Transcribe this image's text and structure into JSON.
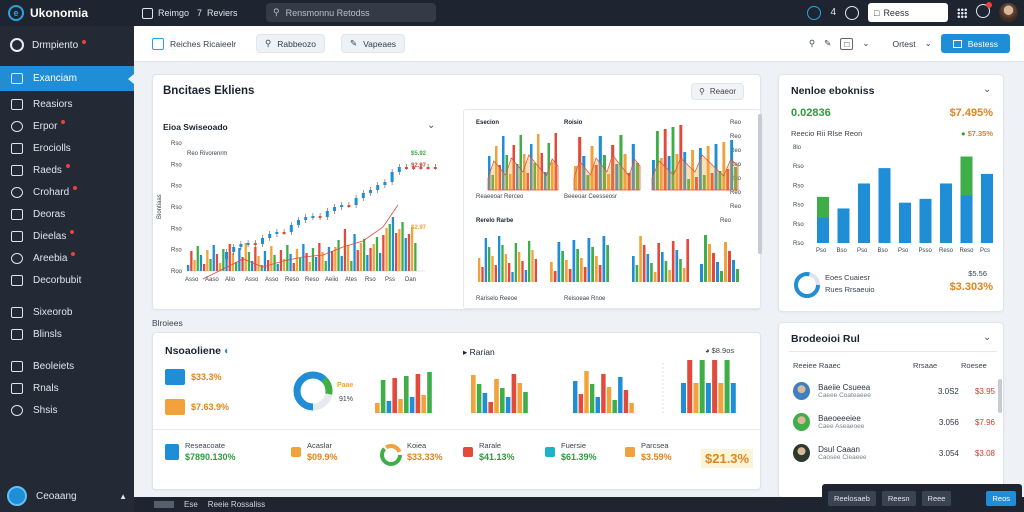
{
  "topbar": {
    "app_name": "Ukonomia",
    "item1": "Reimgo",
    "item2_num": "7",
    "item2": "Reviers",
    "search_placeholder": "Rensmonnu Retodss",
    "num": "4",
    "field": "Reess"
  },
  "sidebar": {
    "header": "Drmpiento",
    "items": [
      {
        "label": "Exanciam",
        "active": true,
        "icon": "chart-icon"
      },
      {
        "label": "Reasiors",
        "icon": "list-icon"
      },
      {
        "label": "Erpor",
        "dot": true,
        "icon": "doc-icon"
      },
      {
        "label": "Erociolls",
        "icon": "tag-icon"
      },
      {
        "label": "Raeds",
        "dot": true,
        "icon": "box-icon"
      },
      {
        "label": "Crohard",
        "dot": true,
        "icon": "cart-icon"
      },
      {
        "label": "Deoras",
        "icon": "user-icon"
      },
      {
        "label": "Dieelas",
        "dot": true,
        "icon": "cog-icon"
      },
      {
        "label": "Areebia",
        "dot": true,
        "icon": "mail-icon"
      },
      {
        "label": "Decorbubit",
        "icon": "folder-icon"
      }
    ],
    "items2": [
      {
        "label": "Sixeorob",
        "icon": "copy-icon"
      },
      {
        "label": "Blinsls",
        "icon": "grid-icon"
      }
    ],
    "items3": [
      {
        "label": "Beoleiets",
        "icon": "bag-icon"
      },
      {
        "label": "Rnals",
        "icon": "settings-icon"
      },
      {
        "label": "Shsis",
        "icon": "menu-icon"
      }
    ],
    "user": "Ceoaang"
  },
  "subbar": {
    "chip1": "Reiches Ricaieelr",
    "chip2": "Rabbeozo",
    "chip3": "Vapeaes",
    "ortest": "Ortest",
    "button": "Bestess"
  },
  "main": {
    "title": "Bncitaes Ekliens",
    "pill": "Reaeor",
    "chart1": {
      "title": "Eioa Swiseoado",
      "legend": "Reo Rivorenrm",
      "stat1": "$5.92",
      "stat2": "$5.92",
      "stat3": "$2.97",
      "stat4": "$2.97",
      "yticks": [
        "Rso",
        "Rso",
        "Rso",
        "Rso",
        "Rso",
        "Rso",
        "Roo"
      ],
      "xticks": [
        "Asso",
        "Aaso",
        "Alio",
        "Asso",
        "Asso",
        "Reso",
        "Reso",
        "Aeiio",
        "Ates",
        "Rso",
        "Pss",
        "Dan"
      ],
      "ylabel": "Biontiaas"
    },
    "chart2": {
      "title": "Esecion",
      "title2": "Roisio",
      "foot1": "Reaeeoar Rerceo",
      "foot2": "Beeeoar Ceesseosr",
      "title3": "Rerelo Rarbe",
      "foot3": "Rariselo Reeoe",
      "foot4": "Reisoeae Rnoe",
      "ticks": [
        "Reo",
        "Reo",
        "Reo",
        "Reo",
        "Reo",
        "Reo",
        "Reo"
      ]
    }
  },
  "section2": {
    "label": "Blroiees",
    "title": "Nsoaoliene",
    "subtitle": "Rarian",
    "top_right": "$8.9os",
    "kpi1_val": "$33.3%",
    "kpi2_val": "$7.63.9%",
    "donut_big1": "Paae",
    "donut_big2": "91%",
    "bottom": [
      {
        "lbl": "Reseacoate",
        "val": "$7890.130%"
      },
      {
        "lbl": "Acaslar",
        "val": "$09.9%"
      },
      {
        "lbl": "Koiea",
        "val": "$33.33%"
      },
      {
        "lbl": "Rarale",
        "val": "$41.13%"
      },
      {
        "lbl": "Fuersie",
        "val": "$61.39%"
      },
      {
        "lbl": "Parcsea",
        "val": "$3.59%"
      },
      {
        "lbl": "",
        "val": "$21.3%"
      }
    ]
  },
  "right1": {
    "title": "Nenloe ebokniss",
    "big_left": "0.02836",
    "big_right": "$7.495%",
    "sub": "Reecio Rii Rlse Reon",
    "sub_right": "$7.35%",
    "yticks": [
      "8lo",
      "Rso",
      "Rso",
      "Rso",
      "Rso",
      "Rso"
    ],
    "xticks": [
      "Pso",
      "Bso",
      "Pso",
      "Bso",
      "Pso",
      "Psso",
      "Reso",
      "Reso",
      "Pcs"
    ],
    "donut_lbl1": "Eoes Cuaiesr",
    "donut_lbl2": "Rues Rrsaeuio",
    "donut_val": "$3.303%",
    "donut_small": "$5.56"
  },
  "right2": {
    "title": "Brodeoioi Rul",
    "col1": "Reeiee Raaec",
    "col2": "Rrsaae",
    "col3": "Roesee",
    "rows": [
      {
        "name": "Baeiie Csueea",
        "sub": "Caeee Coateaeee",
        "amt": "3.0S2",
        "pct": "$3.95"
      },
      {
        "name": "Baeoeeeiee",
        "sub": "Caee Aseaeoee",
        "amt": "3.056",
        "pct": "$7.96"
      },
      {
        "name": "Dsul Caaan",
        "sub": "Caosee Cieaeee",
        "amt": "3.054",
        "pct": "$3.08"
      }
    ]
  },
  "footer": {
    "a": "Ese",
    "b": "Reeie Rossaliss"
  },
  "floatbar": {
    "a": "Reelosaeb",
    "b": "Reesn",
    "c": "Reee",
    "d": "Reos"
  },
  "chart_colors": {
    "blue": "#1f8ed6",
    "green": "#3fae49",
    "orange": "#f2a23a",
    "red": "#e24a3b",
    "teal": "#1bb3c7"
  }
}
